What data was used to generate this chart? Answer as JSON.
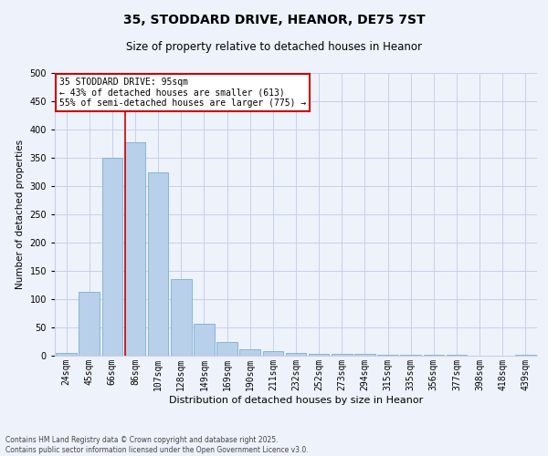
{
  "title_line1": "35, STODDARD DRIVE, HEANOR, DE75 7ST",
  "title_line2": "Size of property relative to detached houses in Heanor",
  "xlabel": "Distribution of detached houses by size in Heanor",
  "ylabel": "Number of detached properties",
  "categories": [
    "24sqm",
    "45sqm",
    "66sqm",
    "86sqm",
    "107sqm",
    "128sqm",
    "149sqm",
    "169sqm",
    "190sqm",
    "211sqm",
    "232sqm",
    "252sqm",
    "273sqm",
    "294sqm",
    "315sqm",
    "335sqm",
    "356sqm",
    "377sqm",
    "398sqm",
    "418sqm",
    "439sqm"
  ],
  "values": [
    5,
    113,
    350,
    378,
    325,
    135,
    57,
    25,
    12,
    8,
    5,
    4,
    4,
    4,
    2,
    1,
    1,
    1,
    0,
    0,
    2
  ],
  "bar_color": "#b8d0ea",
  "bar_edge_color": "#7aaed4",
  "background_color": "#eef2fb",
  "grid_color": "#c8d0e8",
  "property_line_bin": 3,
  "annotation_text_line1": "35 STODDARD DRIVE: 95sqm",
  "annotation_text_line2": "← 43% of detached houses are smaller (613)",
  "annotation_text_line3": "55% of semi-detached houses are larger (775) →",
  "annotation_box_facecolor": "#ffffff",
  "annotation_border_color": "#cc0000",
  "footer_line1": "Contains HM Land Registry data © Crown copyright and database right 2025.",
  "footer_line2": "Contains public sector information licensed under the Open Government Licence v3.0.",
  "ylim": [
    0,
    500
  ],
  "yticks": [
    0,
    50,
    100,
    150,
    200,
    250,
    300,
    350,
    400,
    450,
    500
  ],
  "title_fontsize": 10,
  "subtitle_fontsize": 8.5,
  "xlabel_fontsize": 8,
  "ylabel_fontsize": 7.5,
  "tick_fontsize": 7,
  "annotation_fontsize": 7,
  "footer_fontsize": 5.5
}
